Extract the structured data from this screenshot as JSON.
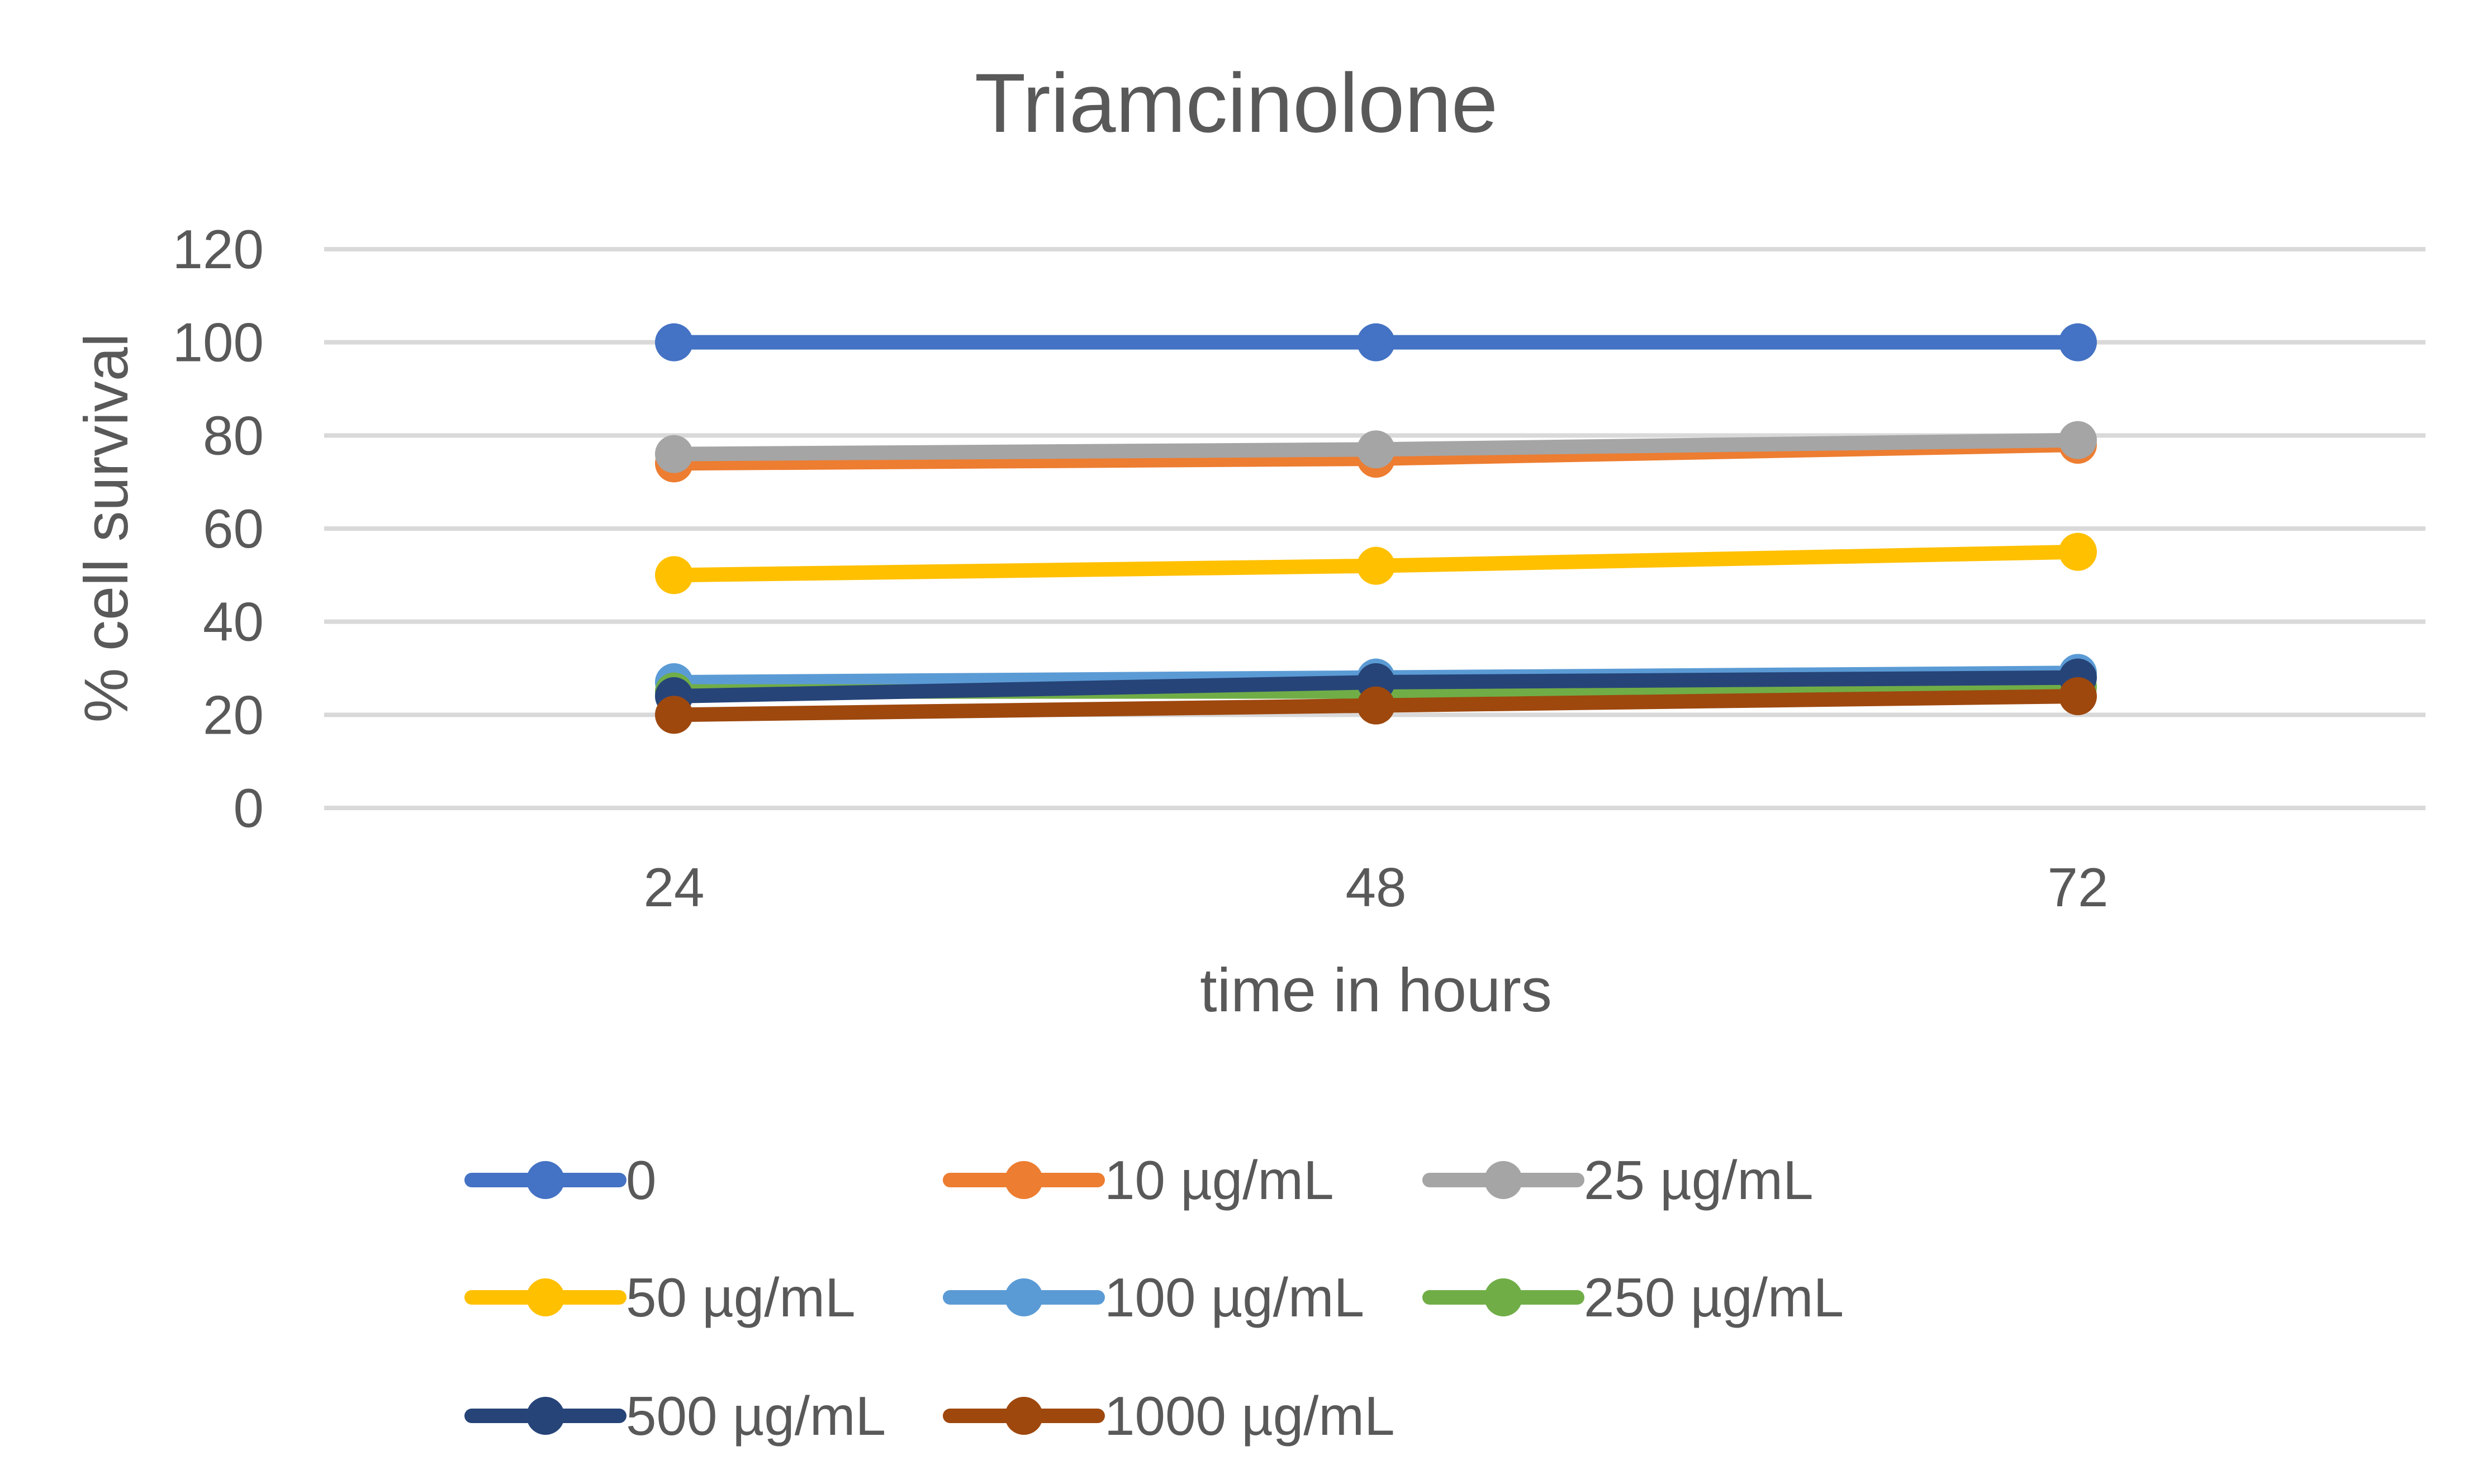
{
  "chart_data": {
    "type": "line",
    "title": "Triamcinolone",
    "xlabel": "time in hours",
    "ylabel": "% cell survival",
    "categories": [
      "24",
      "48",
      "72"
    ],
    "ylim": [
      0,
      120
    ],
    "yticks": [
      0,
      20,
      40,
      60,
      80,
      100,
      120
    ],
    "grid": true,
    "legend_position": "bottom",
    "series": [
      {
        "name": "0",
        "values": [
          100,
          100,
          100
        ],
        "color": "#4472C4"
      },
      {
        "name": "10 µg/mL",
        "values": [
          74,
          75,
          78
        ],
        "color": "#ED7D31"
      },
      {
        "name": "25 µg/mL",
        "values": [
          76,
          77,
          79
        ],
        "color": "#A5A5A5"
      },
      {
        "name": "50 µg/mL",
        "values": [
          50,
          52,
          55
        ],
        "color": "#FFC000"
      },
      {
        "name": "100 µg/mL",
        "values": [
          27,
          28,
          29
        ],
        "color": "#5B9BD5"
      },
      {
        "name": "250 µg/mL",
        "values": [
          25,
          25,
          26
        ],
        "color": "#70AD47"
      },
      {
        "name": "500 µg/mL",
        "values": [
          24,
          27,
          28
        ],
        "color": "#264478"
      },
      {
        "name": "1000 µg/mL",
        "values": [
          20,
          22,
          24
        ],
        "color": "#9E480E"
      }
    ]
  }
}
